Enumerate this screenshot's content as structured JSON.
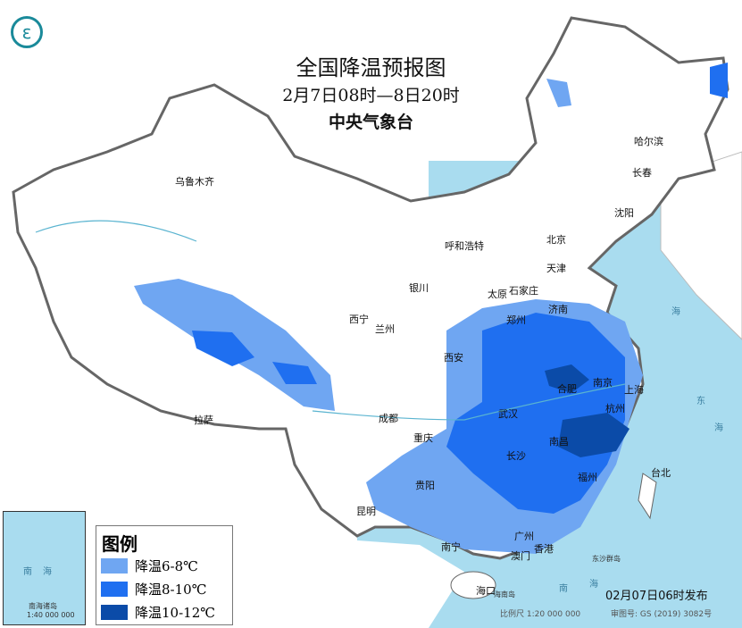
{
  "title": "全国降温预报图",
  "period": "2月7日08时—8日20时",
  "issuer": "中央气象台",
  "legend": {
    "heading": "图例",
    "items": [
      {
        "label": "降温6-8℃",
        "color": "#6fa6f2"
      },
      {
        "label": "降温8-10℃",
        "color": "#1f6ff0"
      },
      {
        "label": "降温10-12℃",
        "color": "#0b4ba8"
      }
    ]
  },
  "cities": [
    "乌鲁木齐",
    "哈尔滨",
    "长春",
    "沈阳",
    "北京",
    "天津",
    "呼和浩特",
    "石家庄",
    "太原",
    "济南",
    "银川",
    "西宁",
    "兰州",
    "西安",
    "郑州",
    "合肥",
    "南京",
    "上海",
    "武汉",
    "杭州",
    "成都",
    "重庆",
    "长沙",
    "南昌",
    "福州",
    "台北",
    "贵阳",
    "拉萨",
    "昆明",
    "南宁",
    "广州",
    "香港",
    "澳门",
    "海口"
  ],
  "sea_labels": {
    "east_sea": [
      "东",
      "海"
    ],
    "yellow_sea": "海",
    "south_sea": [
      "南",
      "海"
    ],
    "hainan_island": "海南岛",
    "dongsha": "东沙群岛"
  },
  "inset": {
    "sea": [
      "南",
      "海"
    ],
    "label": "南海诸岛",
    "scale": "1:40 000 000"
  },
  "publish": "02月07日06时发布",
  "scale": "比例尺 1:20 000 000",
  "review_no": "审图号: GS (2019) 3082号",
  "colors": {
    "sea": "#a9dcef",
    "land": "#ffffff",
    "border": "#666666"
  }
}
